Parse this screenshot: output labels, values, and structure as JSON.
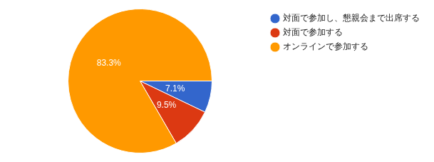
{
  "chart_data": {
    "type": "pie",
    "categories": [
      "対面で参加し、懇親会まで出席する",
      "対面で参加する",
      "オンラインで参加する"
    ],
    "values": [
      7.1,
      9.5,
      83.3
    ],
    "value_labels": [
      "7.1%",
      "9.5%",
      "83.3%"
    ],
    "colors": [
      "#3366cc",
      "#dc3912",
      "#ff9900"
    ],
    "data_labels": true,
    "legend": "right"
  }
}
